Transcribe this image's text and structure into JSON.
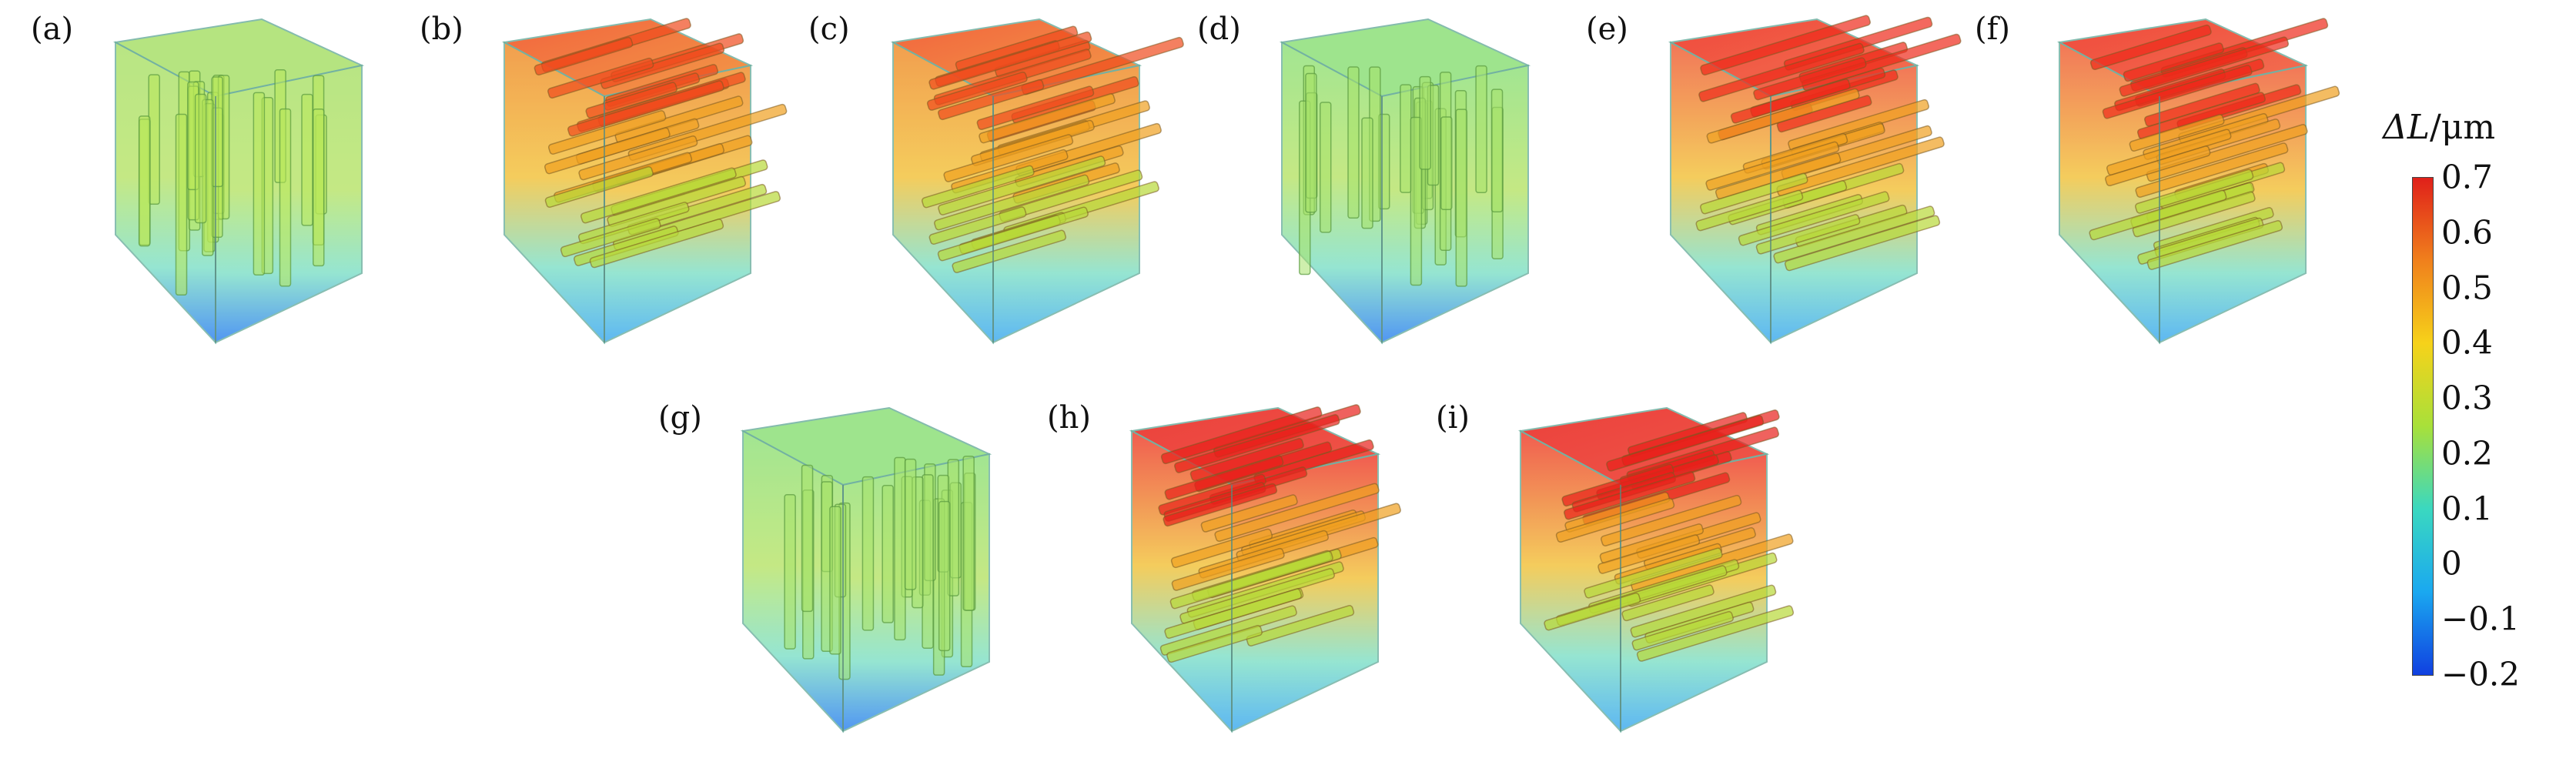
{
  "panels": [
    {
      "label": "(a)",
      "orientation": "vertical",
      "topColor": "#a9e06a",
      "botColor": "#2a7ff0",
      "rodColor": "#b8e85a",
      "hot": false
    },
    {
      "label": "(b)",
      "orientation": "horizontal",
      "topColor": "#f08a28",
      "botColor": "#3aa8f0",
      "rodColor": "#f04a1c",
      "hot": true
    },
    {
      "label": "(c)",
      "orientation": "horizontal",
      "topColor": "#f08a28",
      "botColor": "#3aa8f0",
      "rodColor": "#f04a1c",
      "hot": true
    },
    {
      "label": "(d)",
      "orientation": "vertical",
      "topColor": "#8ee07a",
      "botColor": "#2a7ff0",
      "rodColor": "#a6e26a",
      "hot": false
    },
    {
      "label": "(e)",
      "orientation": "horizontal",
      "topColor": "#f05a34",
      "botColor": "#3aa8f0",
      "rodColor": "#ee2a1a",
      "hot": true
    },
    {
      "label": "(f)",
      "orientation": "horizontal",
      "topColor": "#f05a34",
      "botColor": "#3aa8f0",
      "rodColor": "#ee2a1a",
      "hot": true
    },
    {
      "label": "(g)",
      "orientation": "vertical",
      "topColor": "#8ee07a",
      "botColor": "#2a7ff0",
      "rodColor": "#a6e26a",
      "hot": false
    },
    {
      "label": "(h)",
      "orientation": "horizontal",
      "topColor": "#ee3a2a",
      "botColor": "#3aa8f0",
      "rodColor": "#e8201a",
      "hot": true
    },
    {
      "label": "(i)",
      "orientation": "horizontal",
      "topColor": "#ee3a2a",
      "botColor": "#3aa8f0",
      "rodColor": "#e8201a",
      "hot": true
    }
  ],
  "colorbar": {
    "title_symbol": "ΔL",
    "title_unit": "/μm",
    "min": -0.2,
    "max": 0.7,
    "ticks": [
      "0.7",
      "0.6",
      "0.5",
      "0.4",
      "0.3",
      "0.2",
      "0.1",
      "0",
      "−0.1",
      "−0.2"
    ],
    "tick_values": [
      0.7,
      0.6,
      0.5,
      0.4,
      0.3,
      0.2,
      0.1,
      0,
      -0.1,
      -0.2
    ],
    "colors": [
      "#e0201a",
      "#f0801c",
      "#f6d21a",
      "#a8e03a",
      "#3ad8c0",
      "#1aa8f0",
      "#1040e0"
    ]
  }
}
